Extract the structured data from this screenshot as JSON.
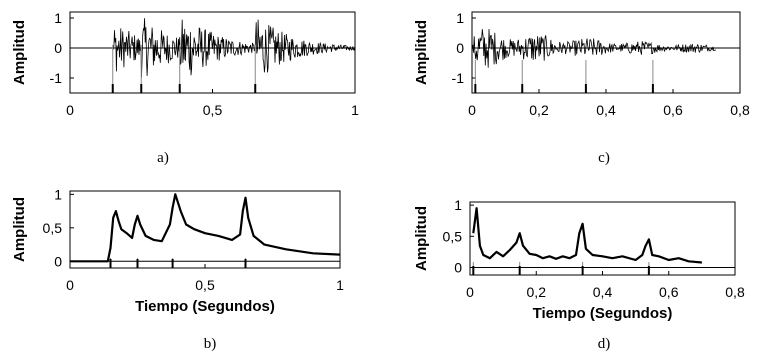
{
  "chart_data": [
    {
      "id": "a",
      "type": "line",
      "caption": "a)",
      "ylabel": "Amplitud",
      "xlabel": "",
      "xlim": [
        0,
        1
      ],
      "ylim": [
        -1.5,
        1.2
      ],
      "xticks": [
        0,
        0.5,
        1
      ],
      "xtick_labels": [
        "0",
        "0,5",
        "1"
      ],
      "yticks": [
        -1,
        0,
        1
      ],
      "ytick_labels": [
        "-1",
        "0",
        "1"
      ],
      "signal": "waveform",
      "onsets": [
        0.15,
        0.25,
        0.385,
        0.65
      ],
      "envelope_peaks": [
        0.9,
        0.7,
        0.95,
        1.0
      ],
      "markers": [
        0.15,
        0.25,
        0.385,
        0.65
      ]
    },
    {
      "id": "b",
      "type": "line",
      "caption": "b)",
      "ylabel": "Amplitud",
      "xlabel": "Tiempo (Segundos)",
      "xlim": [
        0,
        1
      ],
      "ylim": [
        -0.1,
        1.05
      ],
      "xticks": [
        0,
        0.5,
        1
      ],
      "xtick_labels": [
        "0",
        "0,5",
        "1"
      ],
      "yticks": [
        0,
        0.5,
        1
      ],
      "ytick_labels": [
        "0",
        "0,5",
        "1"
      ],
      "x": [
        0,
        0.14,
        0.15,
        0.16,
        0.17,
        0.18,
        0.19,
        0.21,
        0.23,
        0.24,
        0.25,
        0.26,
        0.28,
        0.31,
        0.34,
        0.37,
        0.38,
        0.39,
        0.41,
        0.43,
        0.46,
        0.5,
        0.55,
        0.6,
        0.63,
        0.64,
        0.65,
        0.66,
        0.68,
        0.72,
        0.8,
        0.9,
        1.0
      ],
      "y": [
        0,
        0.0,
        0.2,
        0.65,
        0.75,
        0.6,
        0.48,
        0.42,
        0.35,
        0.55,
        0.68,
        0.55,
        0.38,
        0.32,
        0.3,
        0.55,
        0.8,
        1.0,
        0.75,
        0.55,
        0.48,
        0.42,
        0.38,
        0.32,
        0.4,
        0.75,
        0.95,
        0.65,
        0.38,
        0.25,
        0.18,
        0.12,
        0.1
      ],
      "markers": [
        0.15,
        0.25,
        0.38,
        0.65
      ]
    },
    {
      "id": "c",
      "type": "line",
      "caption": "c)",
      "ylabel": "Amplitud",
      "xlabel": "",
      "xlim": [
        0,
        0.8
      ],
      "ylim": [
        -1.5,
        1.2
      ],
      "xticks": [
        0,
        0.2,
        0.4,
        0.6,
        0.8
      ],
      "xtick_labels": [
        "0",
        "0,2",
        "0,4",
        "0,6",
        "0,8"
      ],
      "yticks": [
        -1,
        0,
        1
      ],
      "ytick_labels": [
        "-1",
        "0",
        "1"
      ],
      "signal": "waveform",
      "duration": 0.73,
      "markers": [
        0.01,
        0.15,
        0.34,
        0.54
      ]
    },
    {
      "id": "d",
      "type": "line",
      "caption": "d)",
      "ylabel": "Amplitud",
      "xlabel": "Tiempo (Segundos)",
      "xlim": [
        0,
        0.8
      ],
      "ylim": [
        -0.12,
        1.05
      ],
      "xticks": [
        0,
        0.2,
        0.4,
        0.6,
        0.8
      ],
      "xtick_labels": [
        "0",
        "0,2",
        "0,4",
        "0,6",
        "0,8"
      ],
      "yticks": [
        0,
        0.5,
        1
      ],
      "ytick_labels": [
        "0",
        "0,5",
        "1"
      ],
      "x": [
        0.01,
        0.02,
        0.03,
        0.04,
        0.06,
        0.08,
        0.1,
        0.12,
        0.14,
        0.15,
        0.16,
        0.18,
        0.2,
        0.22,
        0.24,
        0.26,
        0.28,
        0.3,
        0.32,
        0.33,
        0.34,
        0.35,
        0.37,
        0.4,
        0.43,
        0.46,
        0.5,
        0.52,
        0.53,
        0.54,
        0.55,
        0.57,
        0.6,
        0.63,
        0.66,
        0.7
      ],
      "y": [
        0.55,
        0.95,
        0.35,
        0.2,
        0.15,
        0.25,
        0.18,
        0.28,
        0.4,
        0.55,
        0.35,
        0.22,
        0.2,
        0.15,
        0.18,
        0.14,
        0.18,
        0.15,
        0.2,
        0.55,
        0.7,
        0.3,
        0.2,
        0.18,
        0.15,
        0.18,
        0.12,
        0.2,
        0.35,
        0.45,
        0.2,
        0.18,
        0.12,
        0.15,
        0.1,
        0.08
      ],
      "markers": [
        0.01,
        0.15,
        0.34,
        0.54
      ]
    }
  ]
}
